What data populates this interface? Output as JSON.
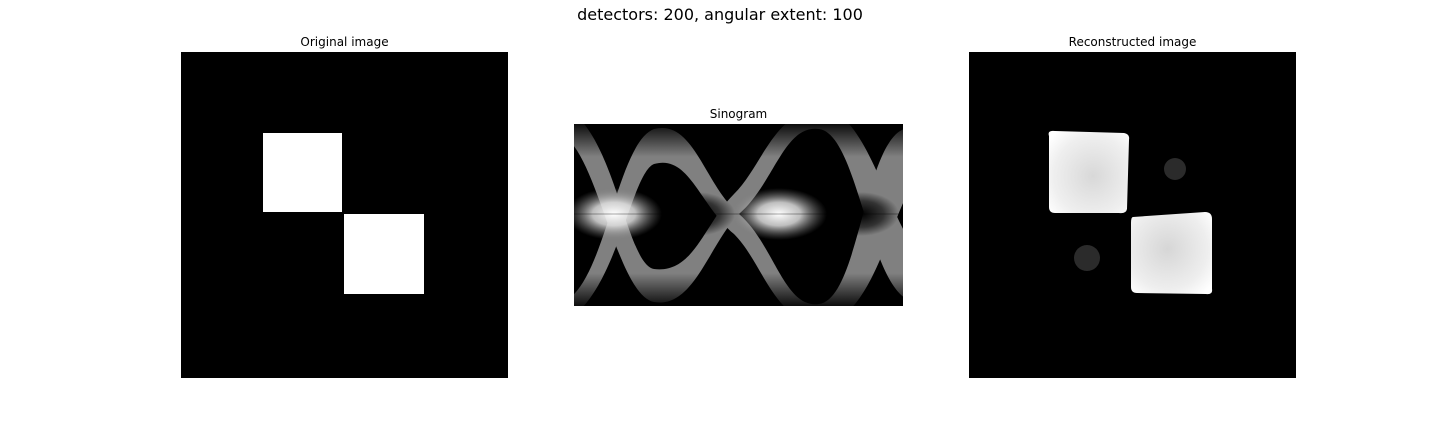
{
  "figure": {
    "title": "detectors: 200, angular extent: 100"
  },
  "panels": {
    "original": {
      "title": "Original image"
    },
    "sinogram": {
      "title": "Sinogram"
    },
    "reconstructed": {
      "title": "Reconstructed image"
    }
  },
  "colors": {
    "background": "#ffffff",
    "image_black": "#000000",
    "image_white": "#ffffff",
    "sinogram_gray": "#808080"
  }
}
